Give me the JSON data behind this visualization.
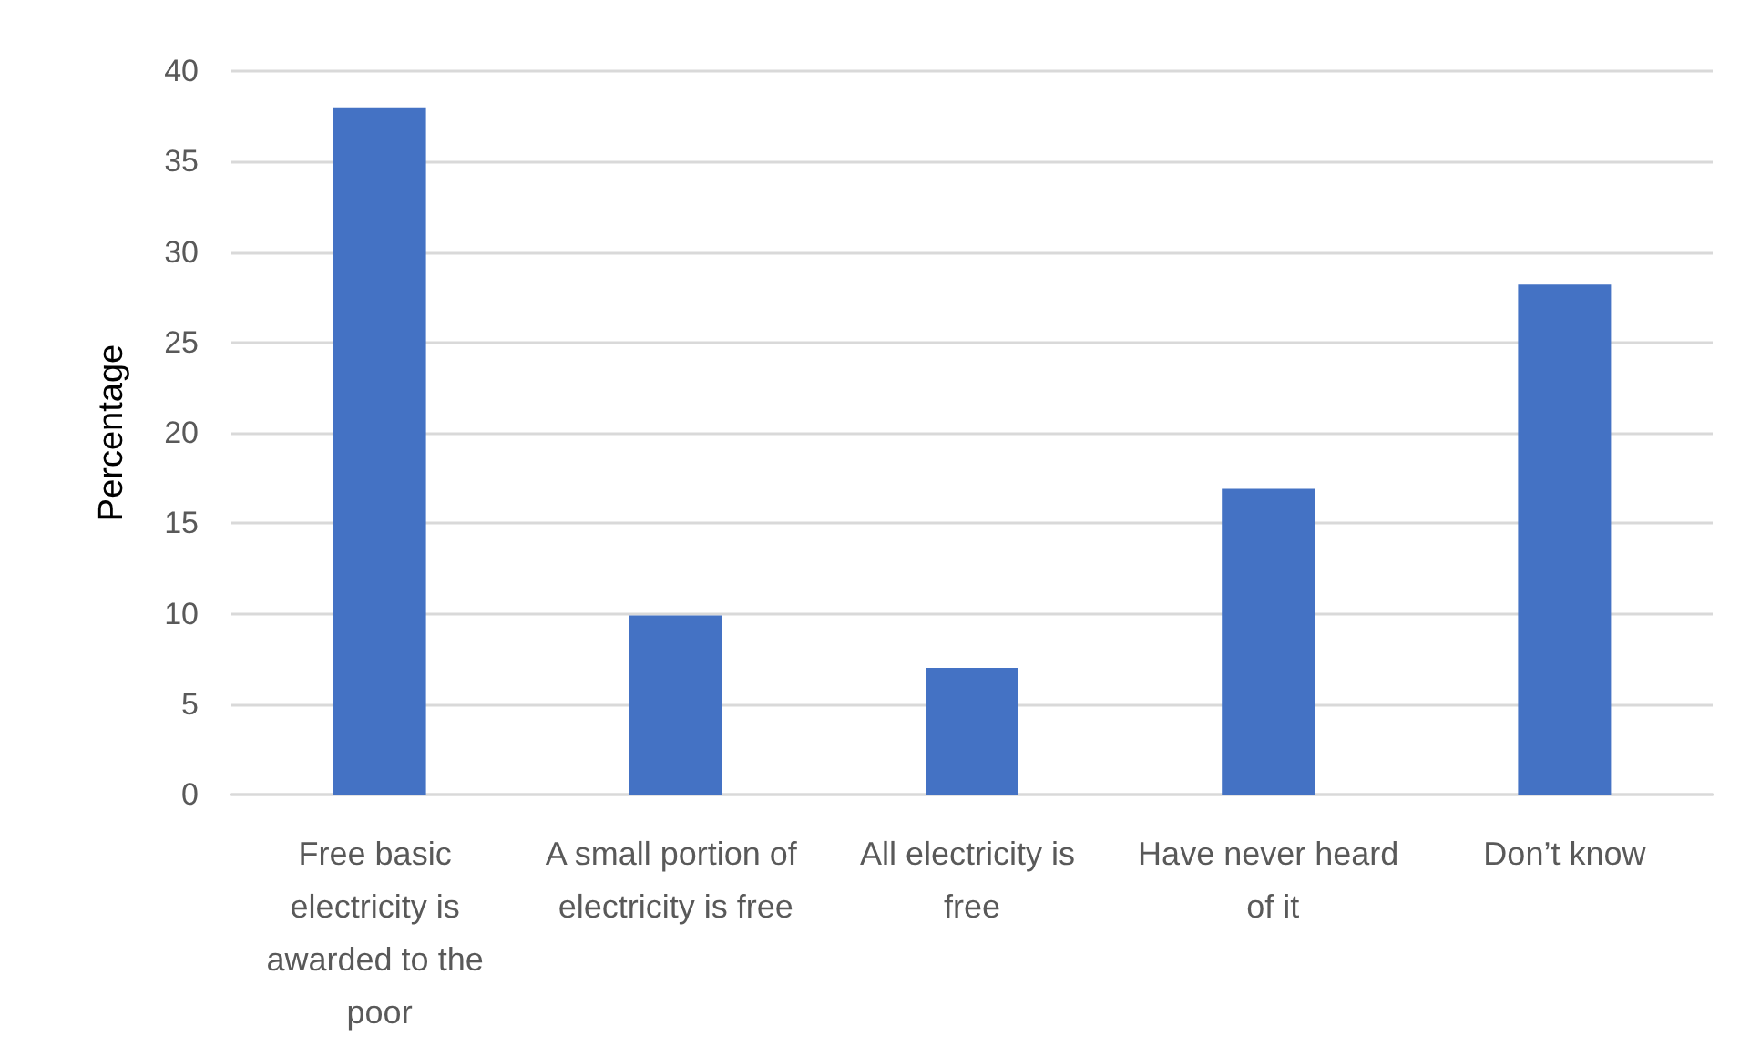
{
  "chart_data": {
    "type": "bar",
    "ylabel": "Percentage",
    "categories": [
      "Free basic electricity is awarded to the poor",
      "A small portion of electricity is free",
      "All electricity is free",
      "Have never heard of it",
      "Don’t know"
    ],
    "values": [
      38,
      9.9,
      7,
      16.9,
      28.2
    ],
    "color": "#4472c4",
    "ylim": [
      0,
      40
    ],
    "yticks": [
      0,
      5,
      10,
      15,
      20,
      25,
      30,
      35,
      40
    ],
    "grid": "y"
  }
}
